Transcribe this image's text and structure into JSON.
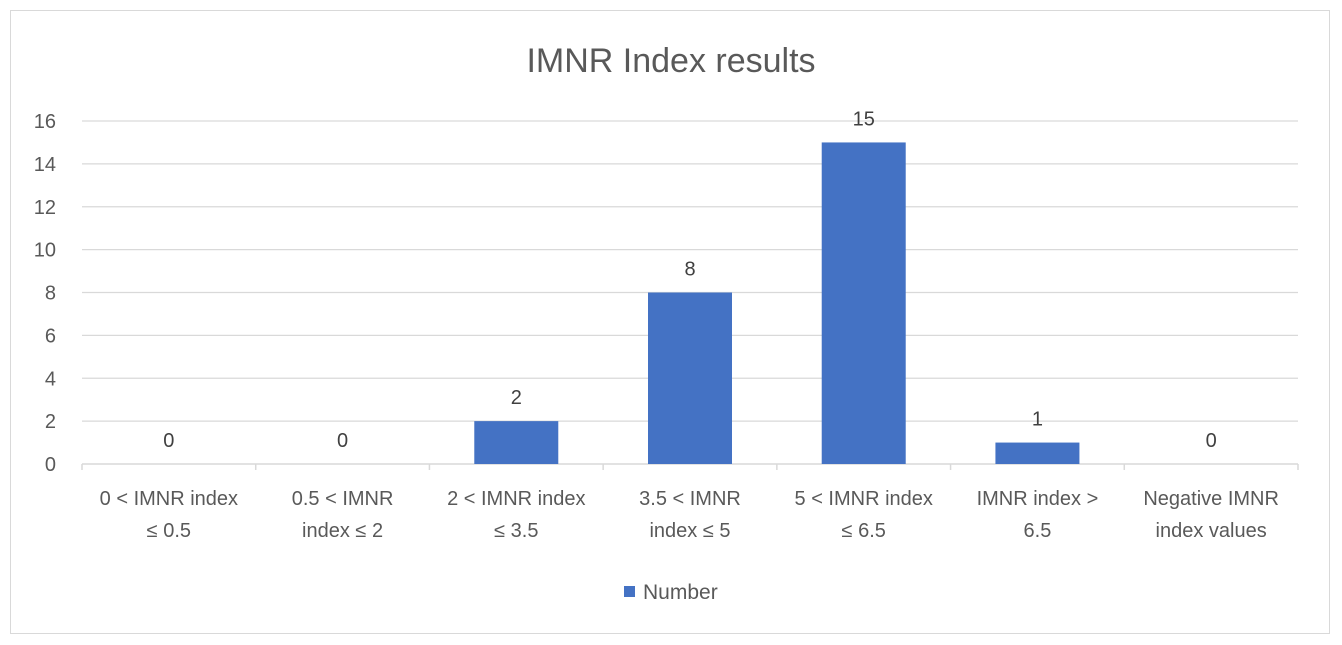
{
  "chart_data": {
    "type": "bar",
    "title": "IMNR Index results",
    "xlabel": "",
    "ylabel": "",
    "categories": [
      [
        "0 < IMNR index",
        "≤ 0.5"
      ],
      [
        "0.5 < IMNR",
        "index ≤ 2"
      ],
      [
        "2 < IMNR index",
        "≤ 3.5"
      ],
      [
        "3.5 < IMNR",
        "index ≤ 5"
      ],
      [
        "5 < IMNR index",
        "≤ 6.5"
      ],
      [
        "IMNR index >",
        "6.5"
      ],
      [
        "Negative IMNR",
        "index values"
      ]
    ],
    "series": [
      {
        "name": "Number",
        "values": [
          0,
          0,
          2,
          8,
          15,
          1,
          0
        ],
        "color": "#4472C4"
      }
    ],
    "ylim": [
      0,
      16
    ],
    "yticks": [
      0,
      2,
      4,
      6,
      8,
      10,
      12,
      14,
      16
    ],
    "grid": true,
    "legend": "bottom",
    "data_labels": true
  }
}
